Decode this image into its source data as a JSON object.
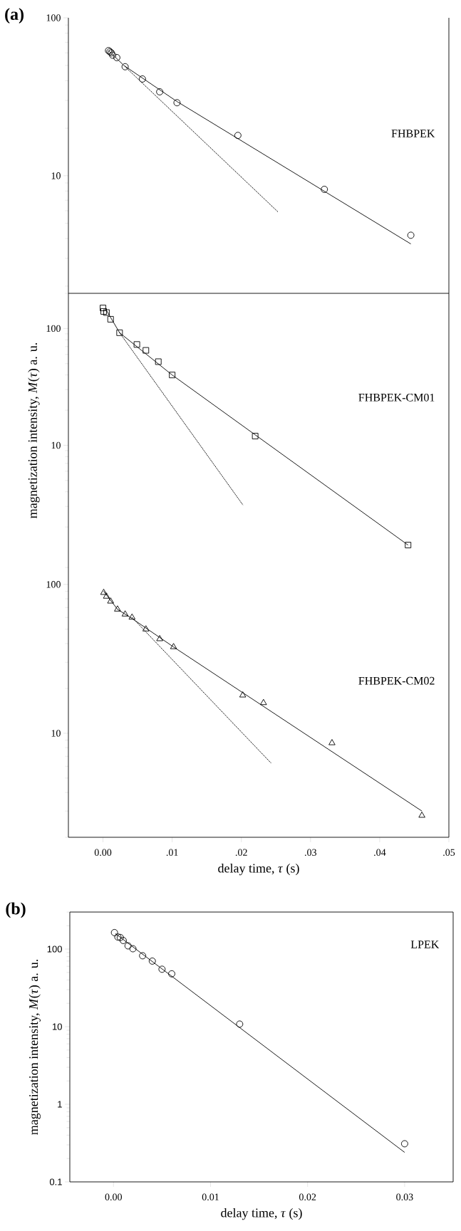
{
  "chart_data": [
    {
      "type": "scatter",
      "annotations": [
        "(a)"
      ],
      "log": "y",
      "tick_labels": "y",
      "xlim": [
        -0.005,
        0.05
      ],
      "ylim": [
        1.8,
        100
      ],
      "yticks": [
        10,
        100
      ],
      "series": [
        {
          "type": "line",
          "line_style": "solid",
          "marker": "none",
          "color": "#000000",
          "x": [
            0.0008,
            0.003,
            0.0107,
            0.0445
          ],
          "values": [
            62,
            50,
            29.5,
            3.7
          ]
        },
        {
          "type": "line",
          "line_style": "dotted",
          "marker": "none",
          "color": "#000000",
          "x": [
            0.0032,
            0.0253
          ],
          "values": [
            49,
            5.9
          ]
        },
        {
          "name": "FHBPEK",
          "marker": "circle",
          "color": "#000000",
          "x": [
            0.0008,
            0.001,
            0.0012,
            0.0014,
            0.002,
            0.0032,
            0.0057,
            0.0082,
            0.0107,
            0.0195,
            0.032,
            0.0445
          ],
          "values": [
            62,
            61,
            60,
            58,
            56,
            49,
            41,
            34,
            29,
            18,
            8.2,
            4.2
          ]
        }
      ]
    },
    {
      "type": "scatter",
      "ylabel": "magnetization intensity, *M*(*τ*) a. u.",
      "log": "y",
      "tick_labels": "y",
      "xlim": [
        -0.005,
        0.05
      ],
      "ylim": [
        0.9,
        200
      ],
      "yticks": [
        10,
        100
      ],
      "series": [
        {
          "type": "line",
          "line_style": "solid",
          "marker": "none",
          "color": "#000000",
          "x": [
            0.0005,
            0.0024,
            0.01,
            0.0441
          ],
          "values": [
            143,
            92,
            40,
            1.4
          ]
        },
        {
          "type": "line",
          "line_style": "dotted",
          "marker": "none",
          "color": "#000000",
          "x": [
            0.0024,
            0.0202
          ],
          "values": [
            92,
            3.1
          ]
        },
        {
          "name": "FHBPEK-CM01",
          "marker": "square",
          "color": "#000000",
          "x": [
            0,
            0.0001,
            0.0005,
            0.0011,
            0.0024,
            0.0049,
            0.0062,
            0.008,
            0.01,
            0.022,
            0.0441
          ],
          "values": [
            150,
            140,
            137,
            120,
            92,
            73,
            65,
            52,
            40,
            12,
            1.4
          ]
        }
      ]
    },
    {
      "type": "scatter",
      "xlabel": "delay time, *τ* (s)",
      "log": "y",
      "xlim": [
        -0.005,
        0.05
      ],
      "ylim": [
        2,
        130
      ],
      "xticks": [
        {
          "value": 0,
          "label": "0.00"
        },
        {
          "value": 0.01,
          "label": ".01"
        },
        {
          "value": 0.02,
          "label": ".02"
        },
        {
          "value": 0.03,
          "label": ".03"
        },
        {
          "value": 0.04,
          "label": ".04"
        },
        {
          "value": 0.05,
          "label": ".05"
        }
      ],
      "yticks": [
        10,
        100
      ],
      "series": [
        {
          "type": "line",
          "line_style": "solid",
          "marker": "none",
          "color": "#000000",
          "x": [
            0.0001,
            0.0021,
            0.0042,
            0.0102,
            0.0461
          ],
          "values": [
            90,
            68,
            59,
            38,
            3.0
          ]
        },
        {
          "type": "line",
          "line_style": "dotted",
          "marker": "none",
          "color": "#000000",
          "x": [
            0.0042,
            0.0243
          ],
          "values": [
            60,
            6.3
          ]
        },
        {
          "name": "FHBPEK-CM02",
          "marker": "triangle",
          "color": "#000000",
          "x": [
            0.0001,
            0.0005,
            0.0011,
            0.0021,
            0.0032,
            0.0042,
            0.0062,
            0.0082,
            0.0102,
            0.0202,
            0.0232,
            0.0331,
            0.0461
          ],
          "values": [
            88,
            83,
            77,
            68,
            63,
            60,
            50,
            43,
            38,
            18,
            16,
            8.6,
            2.8
          ]
        }
      ]
    },
    {
      "type": "scatter",
      "annotations": [
        "(b)"
      ],
      "xlabel": "delay time, *τ* (s)",
      "ylabel": "magnetization intensity, *M*(*τ*) a. u.",
      "log": "y",
      "xlim": [
        -0.0045,
        0.035
      ],
      "ylim": [
        0.1,
        300
      ],
      "xticks": [
        {
          "value": 0,
          "label": "0.00"
        },
        {
          "value": 0.01,
          "label": "0.01"
        },
        {
          "value": 0.02,
          "label": "0.02"
        },
        {
          "value": 0.03,
          "label": "0.03"
        }
      ],
      "yticks": [
        0.1,
        1,
        10,
        100
      ],
      "series": [
        {
          "type": "line",
          "line_style": "solid",
          "marker": "none",
          "color": "#000000",
          "x": [
            0.0002,
            0.03
          ],
          "values": [
            158,
            0.24
          ]
        },
        {
          "name": "LPEK",
          "marker": "circle",
          "color": "#000000",
          "x": [
            0.0001,
            0.00045,
            0.0007,
            0.001,
            0.0015,
            0.002,
            0.003,
            0.004,
            0.005,
            0.006,
            0.013,
            0.03
          ],
          "values": [
            163,
            143,
            141,
            129,
            110,
            101,
            82,
            70,
            55,
            48,
            10.8,
            0.31
          ]
        }
      ]
    }
  ]
}
